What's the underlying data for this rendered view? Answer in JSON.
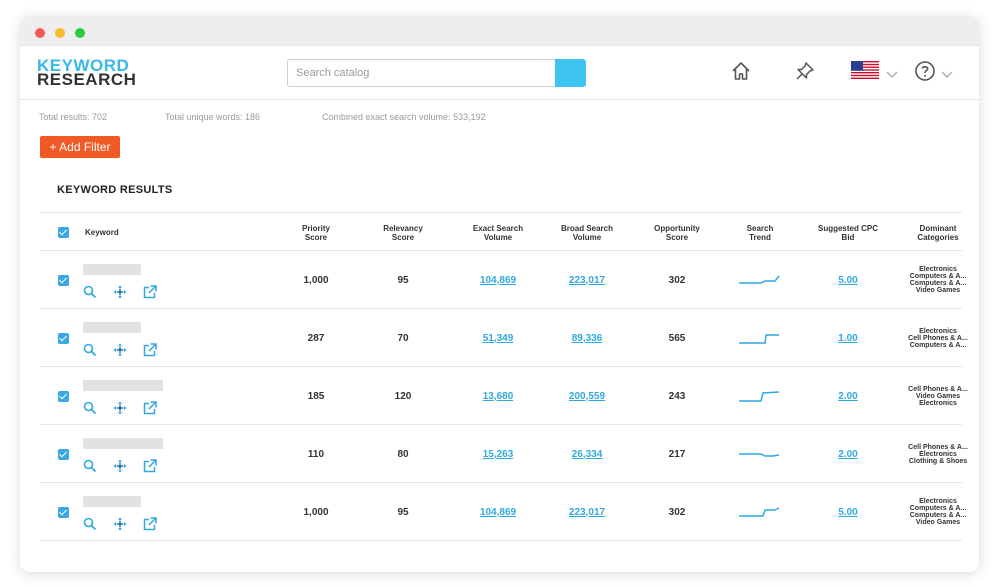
{
  "header": {
    "logo_line1": "KEYWORD",
    "logo_line2": "RESEARCH",
    "search_placeholder": "Search catalog",
    "icons": [
      "home-icon",
      "pin-icon",
      "us-flag-icon",
      "help-icon"
    ]
  },
  "stats": {
    "total_results": "Total results: 702",
    "unique_words": "Total unique words: 186",
    "combined_volume": "Combined exact search volume: 533,192"
  },
  "add_filter_label": "+ Add Filter",
  "section_title": "KEYWORD RESULTS",
  "colors": {
    "accent": "#38b8e8",
    "filter_button": "#f05a24",
    "checkbox": "#3aa9e2",
    "link": "#2fa9df"
  },
  "columns": {
    "keyword": "Keyword",
    "priority_1": "Priority",
    "priority_2": "Score",
    "relevancy_1": "Relevancy",
    "relevancy_2": "Score",
    "exact_1": "Exact Search",
    "exact_2": "Volume",
    "broad_1": "Broad Search",
    "broad_2": "Volume",
    "opp_1": "Opportunity",
    "opp_2": "Score",
    "trend_1": "Search",
    "trend_2": "Trend",
    "cpc_1": "Suggested CPC",
    "cpc_2": "Bid",
    "cat_1": "Dominant",
    "cat_2": "Categories"
  },
  "rows": [
    {
      "priority": "1,000",
      "relevancy": "95",
      "exact": "104,869",
      "broad": "223,017",
      "opportunity": "302",
      "cpc": "5.00",
      "categories": [
        "Electronics",
        "Computers & A...",
        "Computers & A...",
        "Video Games"
      ]
    },
    {
      "priority": "287",
      "relevancy": "70",
      "exact": "51,349",
      "broad": "89,336",
      "opportunity": "565",
      "cpc": "1.00",
      "categories": [
        "Electronics",
        "Cell Phones & A...",
        "Computers & A..."
      ]
    },
    {
      "priority": "185",
      "relevancy": "120",
      "exact": "13,680",
      "broad": "200,559",
      "opportunity": "243",
      "cpc": "2.00",
      "categories": [
        "Cell Phones & A...",
        "Video Games",
        "Electronics"
      ]
    },
    {
      "priority": "110",
      "relevancy": "80",
      "exact": "15,263",
      "broad": "26,334",
      "opportunity": "217",
      "cpc": "2.00",
      "categories": [
        "Cell Phones & A...",
        "Electronics",
        "Clothing & Shoes"
      ]
    },
    {
      "priority": "1,000",
      "relevancy": "95",
      "exact": "104,869",
      "broad": "223,017",
      "opportunity": "302",
      "cpc": "5.00",
      "categories": [
        "Electronics",
        "Computers & A...",
        "Computers & A...",
        "Video Games"
      ]
    }
  ]
}
